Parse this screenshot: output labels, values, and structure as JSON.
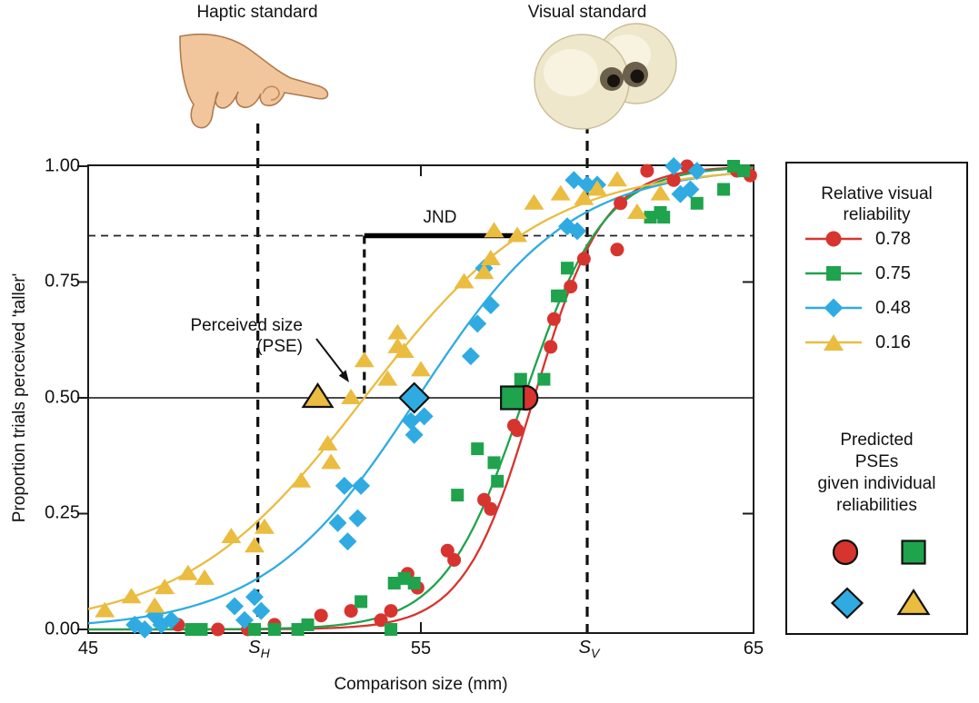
{
  "figure": {
    "top_labels": {
      "haptic": "Haptic standard",
      "visual": "Visual standard"
    },
    "y_axis": {
      "title": "Proportion trials perceived 'taller'",
      "tick_labels": [
        "1.00",
        "0.75",
        "0.50",
        "0.25",
        "0.00"
      ]
    },
    "x_axis": {
      "title": "Comparison size (mm)",
      "tick_labels": [
        "45",
        "55",
        "65"
      ],
      "haptic_tick": {
        "base": "S",
        "sub": "H"
      },
      "visual_tick": {
        "base": "S",
        "sub": "V"
      }
    },
    "annotations": {
      "jnd": "JND",
      "pse_line1": "Perceived size",
      "pse_line2": "(PSE)"
    },
    "legend": {
      "reliability_title": [
        "Relative visual",
        "reliability"
      ],
      "items": [
        {
          "value": "0.78",
          "marker": "circle"
        },
        {
          "value": "0.75",
          "marker": "square"
        },
        {
          "value": "0.48",
          "marker": "diamond"
        },
        {
          "value": "0.16",
          "marker": "triangle"
        }
      ],
      "predicted_title": [
        "Predicted",
        "PSEs",
        "given individual",
        "reliabilities"
      ]
    }
  },
  "chart_data": {
    "type": "scatter",
    "xlabel": "Comparison size (mm)",
    "ylabel": "Proportion trials perceived 'taller'",
    "x_range": [
      45,
      65
    ],
    "y_range": [
      0,
      1
    ],
    "x_ticks": [
      45,
      55,
      65
    ],
    "y_ticks": [
      0,
      0.25,
      0.5,
      0.75,
      1
    ],
    "grid": false,
    "legend_position": "right",
    "reference": {
      "chance_p": 0.5,
      "criterion_p": 0.85,
      "haptic_standard_mm": 50.1,
      "visual_standard_mm": 60.0,
      "empirical_pse_mm": 53.3,
      "jnd_right_mm": 57.9
    },
    "series": [
      {
        "name": "0.78",
        "relative_visual_reliability": 0.78,
        "color": "#d7342f",
        "marker": "circle",
        "curve": {
          "type": "logistic",
          "mu": 58.4,
          "s": 1.05
        },
        "predicted_pse_mm": 58.15,
        "points": [
          [
            47.7,
            0.01
          ],
          [
            48.9,
            0.0
          ],
          [
            49.8,
            0.0
          ],
          [
            50.6,
            0.01
          ],
          [
            52.0,
            0.03
          ],
          [
            52.9,
            0.04
          ],
          [
            53.8,
            0.02
          ],
          [
            54.1,
            0.04
          ],
          [
            54.6,
            0.12
          ],
          [
            54.9,
            0.09
          ],
          [
            55.8,
            0.17
          ],
          [
            56.0,
            0.15
          ],
          [
            56.9,
            0.28
          ],
          [
            57.1,
            0.26
          ],
          [
            57.8,
            0.44
          ],
          [
            57.9,
            0.43
          ],
          [
            58.9,
            0.61
          ],
          [
            59.0,
            0.67
          ],
          [
            59.5,
            0.74
          ],
          [
            59.9,
            0.8
          ],
          [
            60.9,
            0.82
          ],
          [
            61.0,
            0.92
          ],
          [
            61.8,
            0.99
          ],
          [
            62.6,
            0.97
          ],
          [
            63.0,
            1.0
          ],
          [
            64.5,
            0.99
          ],
          [
            64.9,
            0.98
          ]
        ]
      },
      {
        "name": "0.75",
        "relative_visual_reliability": 0.75,
        "color": "#1fa34d",
        "marker": "square",
        "curve": {
          "type": "logistic",
          "mu": 58.1,
          "s": 1.2
        },
        "predicted_pse_mm": 57.75,
        "points": [
          [
            48.1,
            0.0
          ],
          [
            48.4,
            0.0
          ],
          [
            50.0,
            0.0
          ],
          [
            50.6,
            0.0
          ],
          [
            51.3,
            0.0
          ],
          [
            51.6,
            0.01
          ],
          [
            53.2,
            0.06
          ],
          [
            54.1,
            0.0
          ],
          [
            54.2,
            0.1
          ],
          [
            54.5,
            0.11
          ],
          [
            54.8,
            0.1
          ],
          [
            56.1,
            0.29
          ],
          [
            56.7,
            0.39
          ],
          [
            57.2,
            0.36
          ],
          [
            57.3,
            0.32
          ],
          [
            58.0,
            0.54
          ],
          [
            58.7,
            0.54
          ],
          [
            59.1,
            0.72
          ],
          [
            59.2,
            0.72
          ],
          [
            59.4,
            0.78
          ],
          [
            61.9,
            0.89
          ],
          [
            62.2,
            0.9
          ],
          [
            62.3,
            0.89
          ],
          [
            63.3,
            0.92
          ],
          [
            64.1,
            0.95
          ],
          [
            64.4,
            1.0
          ],
          [
            64.7,
            0.99
          ]
        ]
      },
      {
        "name": "0.48",
        "relative_visual_reliability": 0.48,
        "color": "#2fabe2",
        "marker": "diamond",
        "curve": {
          "type": "logistic",
          "mu": 54.9,
          "s": 2.3
        },
        "predicted_pse_mm": 54.8,
        "points": [
          [
            46.4,
            0.01
          ],
          [
            46.7,
            0.0
          ],
          [
            47.0,
            0.03
          ],
          [
            47.2,
            0.01
          ],
          [
            47.5,
            0.02
          ],
          [
            49.4,
            0.05
          ],
          [
            49.7,
            0.02
          ],
          [
            50.0,
            0.07
          ],
          [
            50.2,
            0.04
          ],
          [
            52.5,
            0.23
          ],
          [
            52.7,
            0.31
          ],
          [
            52.8,
            0.19
          ],
          [
            53.1,
            0.24
          ],
          [
            53.2,
            0.31
          ],
          [
            54.7,
            0.45
          ],
          [
            54.8,
            0.42
          ],
          [
            55.1,
            0.46
          ],
          [
            56.5,
            0.59
          ],
          [
            56.7,
            0.66
          ],
          [
            56.9,
            0.78
          ],
          [
            57.1,
            0.7
          ],
          [
            59.4,
            0.87
          ],
          [
            59.7,
            0.86
          ],
          [
            59.6,
            0.97
          ],
          [
            60.0,
            0.96
          ],
          [
            60.3,
            0.96
          ],
          [
            62.6,
            1.0
          ],
          [
            62.8,
            0.94
          ],
          [
            63.1,
            0.95
          ],
          [
            63.3,
            0.99
          ]
        ]
      },
      {
        "name": "0.16",
        "relative_visual_reliability": 0.16,
        "color": "#eabc40",
        "marker": "triangle",
        "curve": {
          "type": "logistic",
          "mu": 53.3,
          "s": 2.7
        },
        "predicted_pse_mm": 51.9,
        "points": [
          [
            45.5,
            0.04
          ],
          [
            46.3,
            0.07
          ],
          [
            47.0,
            0.05
          ],
          [
            47.3,
            0.09
          ],
          [
            48.0,
            0.12
          ],
          [
            48.5,
            0.11
          ],
          [
            49.3,
            0.2
          ],
          [
            50.0,
            0.18
          ],
          [
            50.3,
            0.22
          ],
          [
            51.4,
            0.32
          ],
          [
            52.2,
            0.4
          ],
          [
            52.3,
            0.36
          ],
          [
            52.9,
            0.5
          ],
          [
            53.3,
            0.58
          ],
          [
            54.0,
            0.54
          ],
          [
            54.3,
            0.64
          ],
          [
            54.3,
            0.61
          ],
          [
            54.5,
            0.6
          ],
          [
            55.0,
            0.56
          ],
          [
            56.3,
            0.75
          ],
          [
            56.9,
            0.77
          ],
          [
            57.1,
            0.8
          ],
          [
            57.2,
            0.86
          ],
          [
            57.9,
            0.85
          ],
          [
            58.4,
            0.92
          ],
          [
            59.2,
            0.94
          ],
          [
            59.9,
            0.93
          ],
          [
            60.3,
            0.95
          ],
          [
            60.9,
            0.97
          ],
          [
            61.5,
            0.9
          ],
          [
            62.2,
            0.94
          ]
        ]
      }
    ]
  }
}
